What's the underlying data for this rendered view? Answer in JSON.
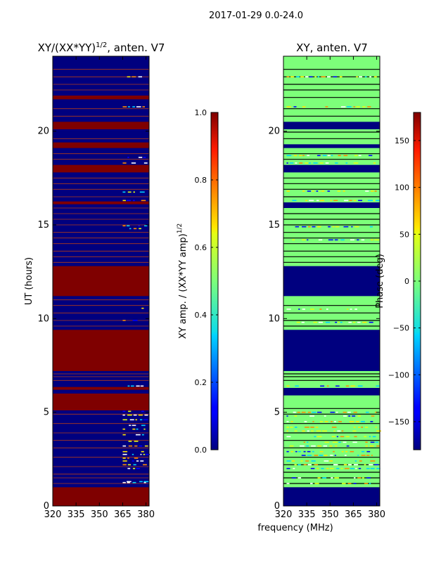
{
  "suptitle": "2017-01-29 0.0-24.0",
  "colors": {
    "dark_blue": "#00007f",
    "dark_red": "#7f0000",
    "light_green": "#7dff7a",
    "black": "#000000",
    "line_red": "#b03a1a"
  },
  "chart_data": [
    {
      "type": "heatmap",
      "title_prefix": "XY/(XX*YY)",
      "title_sup": "1/2",
      "title_suffix": ", anten. V7",
      "xlabel": "",
      "ylabel": "UT (hours)",
      "xlim": [
        320,
        382
      ],
      "ylim": [
        0,
        24
      ],
      "x_ticks": [
        320,
        335,
        350,
        365,
        380
      ],
      "y_ticks": [
        0,
        5,
        10,
        15,
        20
      ],
      "background": "dark_blue",
      "bands": [
        [
          0,
          1,
          "dark_red"
        ],
        [
          5.1,
          6.0,
          "dark_red"
        ],
        [
          6.2,
          6.35,
          "dark_red"
        ],
        [
          7.2,
          9.4,
          "dark_red"
        ],
        [
          11.2,
          12.8,
          "dark_red"
        ],
        [
          16.1,
          16.25,
          "dark_red"
        ],
        [
          17.8,
          18.2,
          "dark_red"
        ],
        [
          19.1,
          19.4,
          "dark_red"
        ],
        [
          20.1,
          20.5,
          "dark_red"
        ],
        [
          21.7,
          21.9,
          "dark_red"
        ]
      ],
      "lines": [
        1.2,
        1.5,
        1.7,
        2.1,
        2.6,
        3.1,
        3.5,
        3.9,
        4.4,
        4.9,
        6.7,
        6.9,
        7.05,
        9.6,
        9.9,
        10.3,
        10.7,
        11.0,
        13.0,
        13.3,
        13.6,
        14.0,
        14.3,
        14.6,
        15.0,
        15.3,
        15.6,
        15.9,
        16.5,
        16.9,
        17.2,
        17.5,
        18.5,
        18.8,
        19.6,
        20.8,
        21.2,
        22.2,
        22.5,
        22.9,
        23.3
      ],
      "speckle_rows": [
        1.25,
        1.3,
        2.0,
        2.2,
        2.4,
        2.55,
        2.75,
        2.9,
        3.2,
        3.45,
        3.8,
        4.1,
        4.3,
        4.6,
        4.85,
        5.05,
        6.4,
        9.9,
        10.55,
        14.8,
        14.95,
        16.3,
        16.75,
        18.3,
        18.6,
        21.3,
        22.9
      ],
      "speckle_range": [
        365,
        380
      ],
      "colorbar": {
        "label_prefix": "XY amp. / (XX*YY amp)",
        "label_sup": "1/2",
        "ticks": [
          0.0,
          0.2,
          0.4,
          0.6,
          0.8,
          1.0
        ],
        "tick_labels": [
          "0.0",
          "0.2",
          "0.4",
          "0.6",
          "0.8",
          "1.0"
        ],
        "range": [
          0,
          1
        ]
      }
    },
    {
      "type": "heatmap",
      "title_prefix": "XY, anten. V7",
      "title_sup": "",
      "title_suffix": "",
      "xlabel": "frequency (MHz)",
      "ylabel": "",
      "xlim": [
        320,
        382
      ],
      "ylim": [
        0,
        24
      ],
      "x_ticks": [
        320,
        335,
        350,
        365,
        380
      ],
      "y_ticks": [
        0,
        5,
        10,
        15,
        20
      ],
      "background": "light_green",
      "bands": [
        [
          0,
          1,
          "dark_blue"
        ],
        [
          5.9,
          6.3,
          "dark_blue"
        ],
        [
          7.2,
          9.4,
          "dark_blue"
        ],
        [
          11.2,
          12.8,
          "dark_blue"
        ],
        [
          15.9,
          16.2,
          "dark_blue"
        ],
        [
          17.8,
          18.2,
          "dark_blue"
        ],
        [
          20.1,
          20.5,
          "dark_blue"
        ],
        [
          19.1,
          19.3,
          "dark_blue"
        ]
      ],
      "lines": [
        1.2,
        1.5,
        1.8,
        2.2,
        2.6,
        3.1,
        3.5,
        3.9,
        4.4,
        4.9,
        5.2,
        6.7,
        6.9,
        7.05,
        9.6,
        9.9,
        10.3,
        10.7,
        13.0,
        13.3,
        13.6,
        14.0,
        14.3,
        14.6,
        15.0,
        15.3,
        15.6,
        16.5,
        16.9,
        17.2,
        17.5,
        18.5,
        18.8,
        19.6,
        19.95,
        20.8,
        21.2,
        21.8,
        22.2,
        22.5,
        22.9,
        23.3
      ],
      "speckle_rows": [
        1.2,
        1.5,
        2.0,
        2.2,
        2.4,
        2.7,
        2.9,
        3.2,
        3.4,
        3.7,
        4.0,
        4.2,
        4.5,
        4.8,
        5.0,
        6.4,
        9.8,
        10.5,
        14.2,
        14.9,
        16.3,
        16.8,
        18.3,
        18.7,
        21.3,
        22.9
      ],
      "speckle_range": [
        322,
        380
      ],
      "colorbar": {
        "label_prefix": "Phase (deg)",
        "label_sup": "",
        "ticks": [
          -150,
          -100,
          -50,
          0,
          50,
          100,
          150
        ],
        "tick_labels": [
          "−150",
          "−100",
          "−50",
          "0",
          "50",
          "100",
          "150"
        ],
        "range": [
          -180,
          180
        ]
      }
    }
  ]
}
